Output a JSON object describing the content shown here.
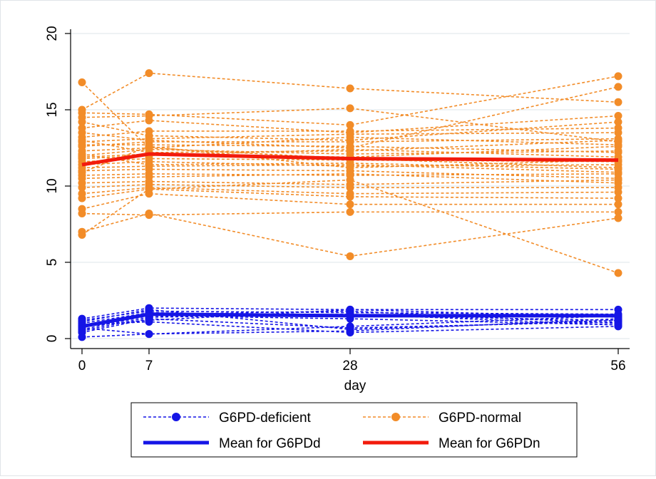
{
  "chart_data": {
    "type": "line",
    "xlabel": "day",
    "ylabel": "",
    "x": [
      0,
      7,
      28,
      56
    ],
    "xticks": [
      "0",
      "7",
      "28",
      "56"
    ],
    "yticks": [
      "0",
      "5",
      "10",
      "15",
      "20"
    ],
    "ylim": [
      0,
      20
    ],
    "xlim": [
      0,
      56
    ],
    "grid": true,
    "legend_position": "bottom",
    "colors": {
      "deficient": "#1515e6",
      "normal": "#f28c28",
      "mean_deficient": "#1515e6",
      "mean_normal": "#f21b0c",
      "grid": "#e9edf0"
    },
    "legend": [
      {
        "label": "G6PD-deficient",
        "style": "dashed-marker",
        "color": "#1515e6"
      },
      {
        "label": "G6PD-normal",
        "style": "dashed-marker",
        "color": "#f28c28"
      },
      {
        "label": "Mean for G6PDd",
        "style": "solid",
        "color": "#1515e6"
      },
      {
        "label": "Mean for G6PDn",
        "style": "solid",
        "color": "#f21b0c"
      }
    ],
    "series_deficient": [
      [
        1.3,
        2.0,
        1.9,
        1.9
      ],
      [
        1.2,
        1.8,
        1.7,
        1.6
      ],
      [
        1.0,
        1.7,
        1.5,
        1.2
      ],
      [
        0.8,
        1.6,
        1.8,
        1.0
      ],
      [
        0.6,
        1.5,
        1.3,
        0.9
      ],
      [
        0.4,
        1.3,
        0.7,
        1.1
      ],
      [
        0.9,
        1.1,
        0.4,
        0.8
      ],
      [
        0.7,
        0.3,
        0.5,
        1.3
      ],
      [
        0.1,
        0.3,
        0.8,
        1.5
      ],
      [
        1.1,
        1.9,
        0.6,
        1.2
      ],
      [
        0.5,
        1.4,
        1.6,
        0.9
      ],
      [
        0.8,
        1.2,
        1.9,
        1.4
      ]
    ],
    "series_normal": [
      [
        16.8,
        12.5,
        11.8,
        11.2
      ],
      [
        15.0,
        17.4,
        16.4,
        15.5
      ],
      [
        14.8,
        14.7,
        14.0,
        17.2
      ],
      [
        14.5,
        14.6,
        15.1,
        12.9
      ],
      [
        13.8,
        14.3,
        13.5,
        14.6
      ],
      [
        13.2,
        13.6,
        13.6,
        13.8
      ],
      [
        12.9,
        13.1,
        13.4,
        13.5
      ],
      [
        12.6,
        12.9,
        12.9,
        13.1
      ],
      [
        12.3,
        12.5,
        13.2,
        12.7
      ],
      [
        12.0,
        12.4,
        12.1,
        12.3
      ],
      [
        11.8,
        12.0,
        12.4,
        11.9
      ],
      [
        11.6,
        11.8,
        11.7,
        11.6
      ],
      [
        11.4,
        11.6,
        11.3,
        11.4
      ],
      [
        11.2,
        11.3,
        11.4,
        10.9
      ],
      [
        11.0,
        11.1,
        11.0,
        10.5
      ],
      [
        10.7,
        10.8,
        10.7,
        10.8
      ],
      [
        10.5,
        10.6,
        10.8,
        10.2
      ],
      [
        10.2,
        10.3,
        10.1,
        10.4
      ],
      [
        9.9,
        10.1,
        9.9,
        9.9
      ],
      [
        9.5,
        9.9,
        9.5,
        9.6
      ],
      [
        9.2,
        9.8,
        9.3,
        9.2
      ],
      [
        8.5,
        9.5,
        8.8,
        8.8
      ],
      [
        8.2,
        8.1,
        8.3,
        8.3
      ],
      [
        7.0,
        8.2,
        5.4,
        7.9
      ],
      [
        6.8,
        9.8,
        10.4,
        4.3
      ],
      [
        13.5,
        13.0,
        12.5,
        16.5
      ],
      [
        12.7,
        12.7,
        12.6,
        12.2
      ],
      [
        13.0,
        12.2,
        12.3,
        13.0
      ],
      [
        11.9,
        12.1,
        11.9,
        12.6
      ],
      [
        14.2,
        13.3,
        13.0,
        14.2
      ],
      [
        10.9,
        12.6,
        11.2,
        11.7
      ],
      [
        12.1,
        11.4,
        11.5,
        11.1
      ]
    ],
    "mean_deficient": [
      0.8,
      1.6,
      1.5,
      1.5
    ],
    "mean_normal": [
      11.4,
      12.1,
      11.8,
      11.7
    ]
  }
}
